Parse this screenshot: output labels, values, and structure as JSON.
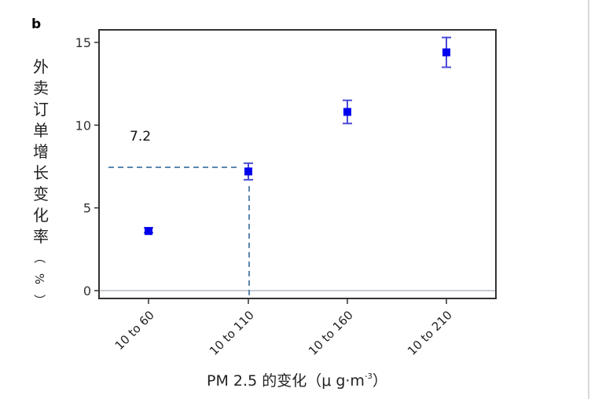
{
  "chart_data": {
    "type": "scatter",
    "panel_label": "b",
    "categories": [
      "10 to 60",
      "10 to 110",
      "10 to 160",
      "10 to 210"
    ],
    "values": [
      3.6,
      7.2,
      10.8,
      14.4
    ],
    "error_low": [
      3.5,
      6.7,
      10.1,
      13.5
    ],
    "error_high": [
      3.8,
      7.7,
      11.5,
      15.3
    ],
    "ylim": [
      -0.5,
      15.8
    ],
    "yticks": [
      0,
      5,
      10,
      15
    ],
    "xlabel": "PM 2.5 的变化（μ g·m",
    "xlabel_sup": "-3",
    "xlabel_end": "）",
    "ylabel": "外卖订单增长变化率（%）",
    "annotation": {
      "text": "7.2",
      "reference_y": 7.45,
      "reference_category": "10 to 110"
    },
    "grid": false,
    "marker_color": "#0000ee",
    "errorbar_color": "#4a4ad6",
    "reference_line_color": "#5a88b0",
    "zero_line_color": "#c8ccd4"
  }
}
